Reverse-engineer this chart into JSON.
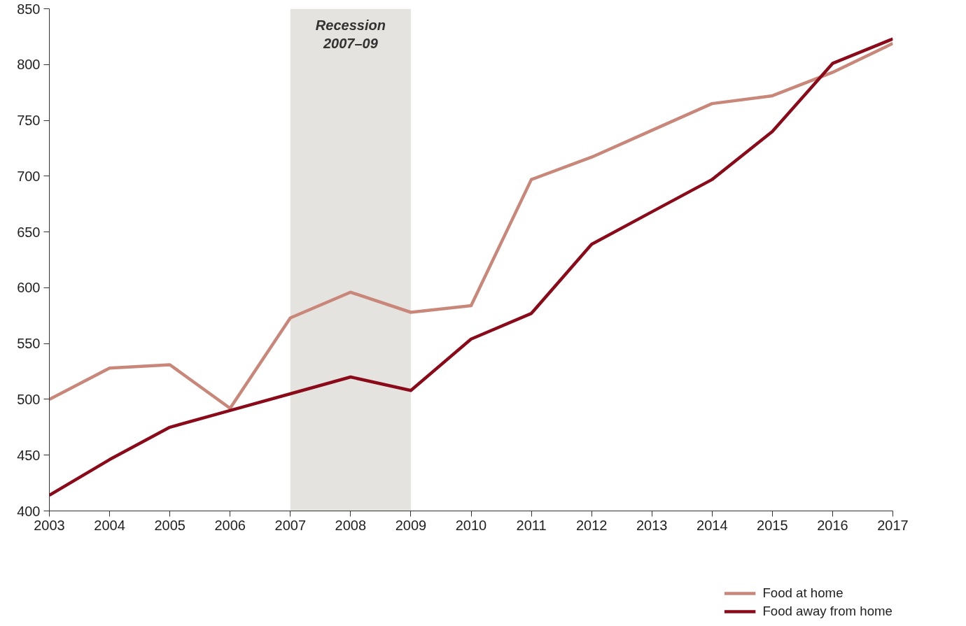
{
  "chart_data": {
    "type": "line",
    "x": [
      2003,
      2004,
      2005,
      2006,
      2007,
      2008,
      2009,
      2010,
      2011,
      2012,
      2013,
      2014,
      2015,
      2016,
      2017
    ],
    "series": [
      {
        "name": "Food at home",
        "color": "#c9877a",
        "values": [
          500,
          528,
          531,
          492,
          573,
          596,
          578,
          584,
          697,
          717,
          741,
          765,
          772,
          793,
          819
        ]
      },
      {
        "name": "Food away from home",
        "color": "#8b0a1a",
        "values": [
          414,
          446,
          475,
          490,
          505,
          520,
          508,
          554,
          577,
          639,
          668,
          697,
          740,
          801,
          823
        ]
      }
    ],
    "xlim": [
      2003,
      2017
    ],
    "xticks": [
      2003,
      2004,
      2005,
      2006,
      2007,
      2008,
      2009,
      2010,
      2011,
      2012,
      2013,
      2014,
      2015,
      2016,
      2017
    ],
    "ylim": [
      400,
      850
    ],
    "yticks": [
      400,
      450,
      500,
      550,
      600,
      650,
      700,
      750,
      800,
      850
    ],
    "bands": [
      {
        "axis": "x",
        "from": 2007,
        "to": 2009,
        "label": "Recession\n2007–09",
        "color": "#e5e3df"
      }
    ],
    "grid": false,
    "legend": "bottom right",
    "marker": "none",
    "line_style": "solid"
  }
}
